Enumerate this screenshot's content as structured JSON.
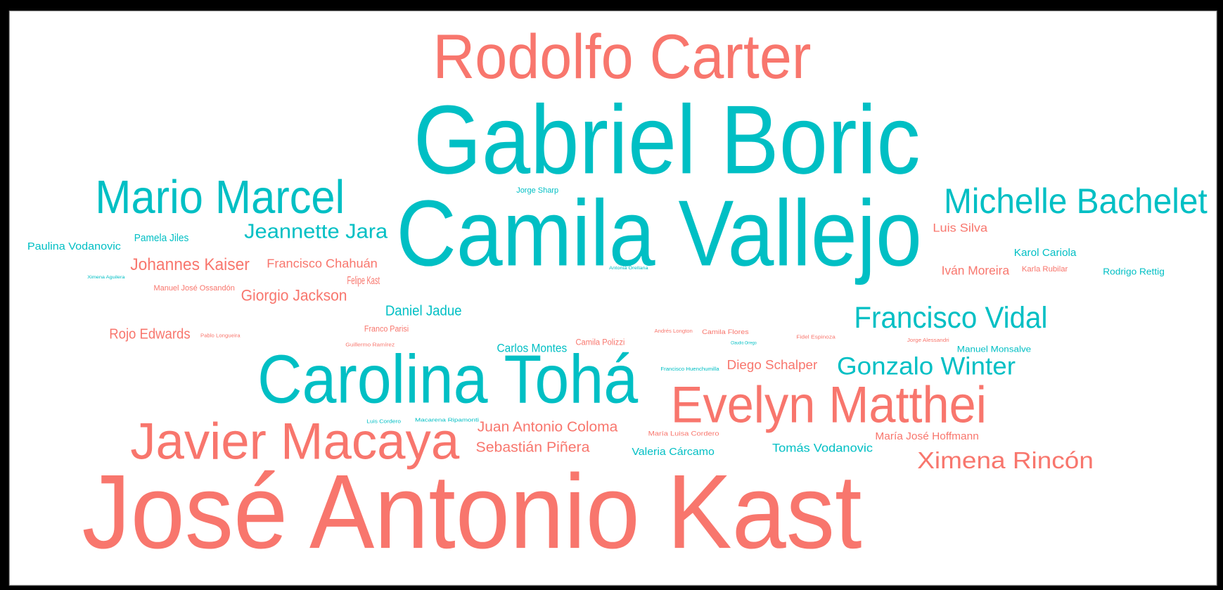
{
  "chart_data": {
    "type": "wordcloud",
    "words": [
      {
        "text": "Rodolfo Carter",
        "color": "#f8766d"
      },
      {
        "text": "Gabriel Boric",
        "color": "#00bfc4"
      },
      {
        "text": "Camila Vallejo",
        "color": "#00bfc4"
      },
      {
        "text": "Mario Marcel",
        "color": "#00bfc4"
      },
      {
        "text": "Michelle Bachelet",
        "color": "#00bfc4"
      },
      {
        "text": "Jeannette Jara",
        "color": "#00bfc4"
      },
      {
        "text": "Paulina Vodanovic",
        "color": "#00bfc4"
      },
      {
        "text": "Pamela Jiles",
        "color": "#00bfc4"
      },
      {
        "text": "Johannes Kaiser",
        "color": "#f8766d"
      },
      {
        "text": "Francisco Chahuán",
        "color": "#f8766d"
      },
      {
        "text": "Felipe Kast",
        "color": "#f8766d"
      },
      {
        "text": "Manuel José Ossandón",
        "color": "#f8766d"
      },
      {
        "text": "Giorgio Jackson",
        "color": "#f8766d"
      },
      {
        "text": "Daniel Jadue",
        "color": "#00bfc4"
      },
      {
        "text": "Rojo Edwards",
        "color": "#f8766d"
      },
      {
        "text": "Franco Parisi",
        "color": "#f8766d"
      },
      {
        "text": "Carlos Montes",
        "color": "#00bfc4"
      },
      {
        "text": "Camila Polizzi",
        "color": "#f8766d"
      },
      {
        "text": "Carolina Tohá",
        "color": "#00bfc4"
      },
      {
        "text": "Francisco Vidal",
        "color": "#00bfc4"
      },
      {
        "text": "Gonzalo Winter",
        "color": "#00bfc4"
      },
      {
        "text": "Diego Schalper",
        "color": "#f8766d"
      },
      {
        "text": "Evelyn Matthei",
        "color": "#f8766d"
      },
      {
        "text": "Javier Macaya",
        "color": "#f8766d"
      },
      {
        "text": "Juan Antonio Coloma",
        "color": "#f8766d"
      },
      {
        "text": "Sebastián Piñera",
        "color": "#f8766d"
      },
      {
        "text": "Valeria Cárcamo",
        "color": "#00bfc4"
      },
      {
        "text": "Tomás Vodanovic",
        "color": "#00bfc4"
      },
      {
        "text": "María José Hoffmann",
        "color": "#f8766d"
      },
      {
        "text": "Ximena Rincón",
        "color": "#f8766d"
      },
      {
        "text": "José Antonio Kast",
        "color": "#f8766d"
      },
      {
        "text": "Luis Silva",
        "color": "#f8766d"
      },
      {
        "text": "Karol Cariola",
        "color": "#00bfc4"
      },
      {
        "text": "Iván Moreira",
        "color": "#f8766d"
      },
      {
        "text": "Karla Rubilar",
        "color": "#f8766d"
      },
      {
        "text": "Rodrigo Rettig",
        "color": "#00bfc4"
      },
      {
        "text": "Manuel Monsalve",
        "color": "#00bfc4"
      },
      {
        "text": "Jorge Sharp",
        "color": "#00bfc4"
      },
      {
        "text": "Andrés Longton",
        "color": "#f8766d"
      },
      {
        "text": "Camila Flores",
        "color": "#f8766d"
      },
      {
        "text": "Francisco Huenchumilla",
        "color": "#00bfc4"
      },
      {
        "text": "María Luisa Cordero",
        "color": "#f8766d"
      },
      {
        "text": "Macarena Ripamonti",
        "color": "#00bfc4"
      },
      {
        "text": "Luis Cordero",
        "color": "#00bfc4"
      },
      {
        "text": "Guillermo Ramírez",
        "color": "#f8766d"
      },
      {
        "text": "Pablo Longueira",
        "color": "#f8766d"
      },
      {
        "text": "Ximena Aguilera",
        "color": "#00bfc4"
      },
      {
        "text": "Fidel Espinoza",
        "color": "#f8766d"
      },
      {
        "text": "Jorge Alessandri",
        "color": "#f8766d"
      },
      {
        "text": "Antonia Orellana",
        "color": "#00bfc4"
      },
      {
        "text": "Claudio Orrego",
        "color": "#00bfc4"
      }
    ]
  }
}
